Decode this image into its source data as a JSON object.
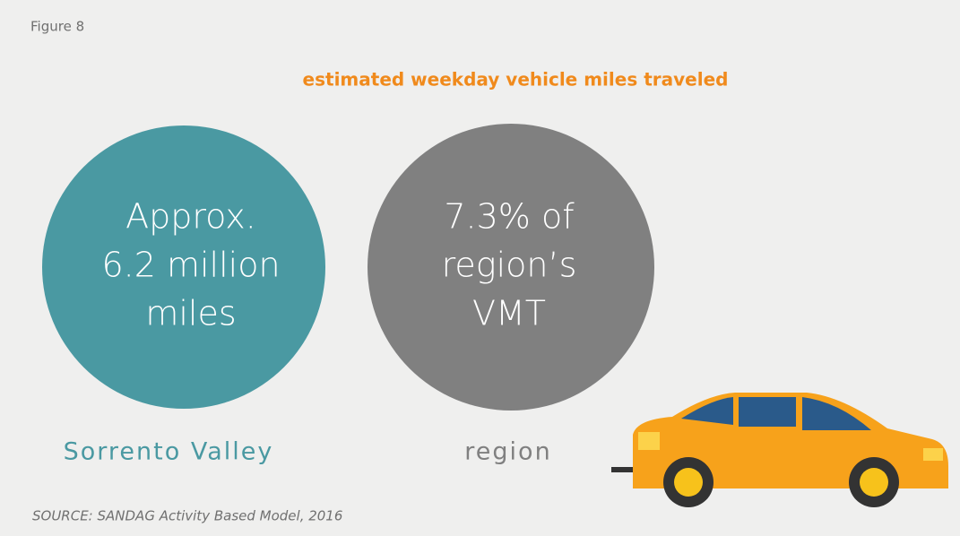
{
  "figure_label": "Figure 8",
  "title": "estimated weekday vehicle miles traveled",
  "circles": [
    {
      "lines": [
        "Approx.",
        "6.2 million",
        "miles"
      ],
      "label": "Sorrento Valley"
    },
    {
      "lines": [
        "7.3% of",
        "region’s",
        "VMT"
      ],
      "label": "region"
    }
  ],
  "source": "SOURCE: SANDAG Activity Based Model, 2016"
}
